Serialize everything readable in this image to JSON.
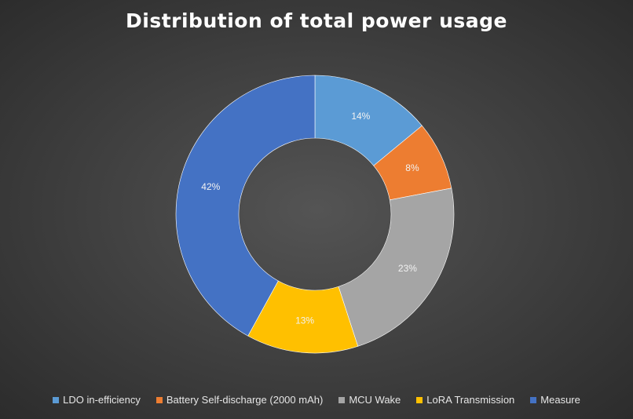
{
  "chart_data": {
    "type": "pie",
    "title": "Distribution of total power usage",
    "donut": true,
    "legend_position": "bottom",
    "slices": [
      {
        "label": "LDO in-efficiency",
        "value": 14,
        "display": "14%",
        "color": "#5b9bd5"
      },
      {
        "label": "Battery Self-discharge (2000 mAh)",
        "value": 8,
        "display": "8%",
        "color": "#ed7d31"
      },
      {
        "label": "MCU Wake",
        "value": 23,
        "display": "23%",
        "color": "#a5a5a5"
      },
      {
        "label": "LoRA Transmission",
        "value": 13,
        "display": "13%",
        "color": "#ffc000"
      },
      {
        "label": "Measure",
        "value": 42,
        "display": "42%",
        "color": "#4472c4"
      }
    ]
  }
}
